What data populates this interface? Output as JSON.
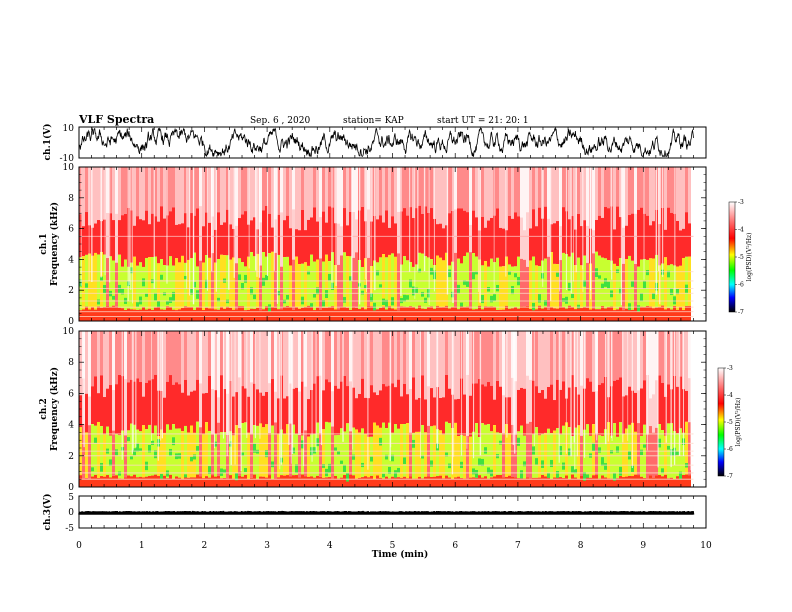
{
  "header": {
    "title": "VLF Spectra",
    "date": "Sep. 6 , 2020",
    "station": "station= KAP",
    "start": "start UT = 21: 20: 1"
  },
  "chart_data": [
    {
      "type": "line",
      "name": "ch1-waveform",
      "ylabel": "ch.1(V)",
      "ylim": [
        -10,
        10
      ],
      "yticks": [
        "10",
        "-10"
      ],
      "xlim": [
        0,
        10
      ],
      "approx_range": [
        -9,
        9
      ]
    },
    {
      "type": "heatmap",
      "name": "ch1-spectrogram",
      "ylabel": "ch.1 Frequency (kHz)",
      "ylabel_lines": [
        "ch.1",
        "Frequency (kHz)"
      ],
      "ylim": [
        0,
        10
      ],
      "yticks": [
        "0",
        "2",
        "4",
        "6",
        "8",
        "10"
      ],
      "xlim": [
        0,
        10
      ],
      "colorbar": {
        "label": "log(PSD)(V²/Hz)",
        "range": [
          -7,
          -3
        ],
        "ticks": [
          "-3",
          "-4",
          "-5",
          "-6",
          "-7"
        ]
      },
      "high_power_band_khz": [
        1,
        3.5
      ],
      "tone_lines_khz": [
        0.3,
        0.6,
        0.9,
        1.3,
        1.8,
        2.1,
        2.6,
        3.2,
        5.5
      ]
    },
    {
      "type": "heatmap",
      "name": "ch2-spectrogram",
      "ylabel": "ch.2 Frequency (kHz)",
      "ylabel_lines": [
        "ch.2",
        "Frequency (kHz)"
      ],
      "ylim": [
        0,
        10
      ],
      "yticks": [
        "0",
        "2",
        "4",
        "6",
        "8",
        "10"
      ],
      "xlim": [
        0,
        10
      ],
      "colorbar": {
        "label": "log(PSD)(V²/Hz)",
        "range": [
          -7,
          -3
        ],
        "ticks": [
          "-3",
          "-4",
          "-5",
          "-6",
          "-7"
        ]
      },
      "high_power_band_khz": [
        0.8,
        3.2
      ],
      "tone_lines_khz": [
        0.5,
        0.9,
        1.4,
        2.0,
        2.3,
        2.8,
        3.4
      ]
    },
    {
      "type": "line",
      "name": "ch3-waveform",
      "ylabel": "ch.3(V)",
      "ylim": [
        -5,
        5
      ],
      "yticks": [
        "5",
        "0",
        "-5"
      ],
      "xlim": [
        0,
        10
      ],
      "approx_range": [
        -0.8,
        0.3
      ]
    }
  ],
  "xaxis": {
    "label": "Time (min)",
    "ticks": [
      "0",
      "1",
      "2",
      "3",
      "4",
      "5",
      "6",
      "7",
      "8",
      "9",
      "10"
    ],
    "data_end": 9.8
  },
  "colors": {
    "cmap": [
      "#ffffff",
      "#ff0000",
      "#ffff00",
      "#00ff00",
      "#00ffff",
      "#0000ff",
      "#000000"
    ]
  }
}
